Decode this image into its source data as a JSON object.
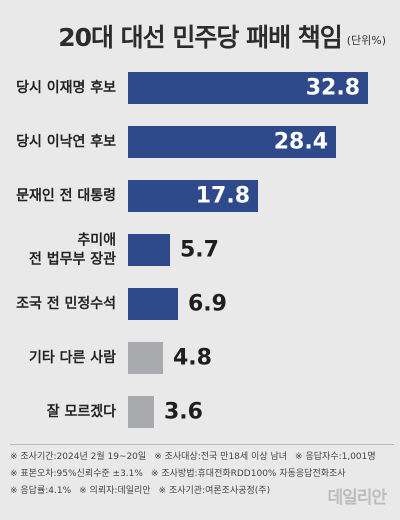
{
  "title": "20대 대선 민주당 패배 책임",
  "unit": "(단위%)",
  "colors": {
    "primary": "#2e4a8a",
    "secondary": "#a9aaad",
    "bg": "#e9e9e9"
  },
  "chart_data": {
    "type": "bar",
    "orientation": "horizontal",
    "categories": [
      [
        "당시 이재명 후보"
      ],
      [
        "당시 이낙연 후보"
      ],
      [
        "문재인 전 대통령"
      ],
      [
        "추미애",
        "전 법무부 장관"
      ],
      [
        "조국 전 민정수석"
      ],
      [
        "기타 다른 사람"
      ],
      [
        "잘 모르겠다"
      ]
    ],
    "values": [
      32.8,
      28.4,
      17.8,
      5.7,
      6.9,
      4.8,
      3.6
    ],
    "value_labels": [
      "32.8",
      "28.4",
      "17.8",
      "5.7",
      "6.9",
      "4.8",
      "3.6"
    ],
    "bar_colors": [
      "primary",
      "primary",
      "primary",
      "primary",
      "primary",
      "secondary",
      "secondary"
    ],
    "xlim": [
      0,
      35
    ]
  },
  "notes": [
    [
      "※ 조사기간:2024년 2월 19~20일",
      "※ 조사대상:전국 만18세 이상 남녀",
      "※ 응답자수:1,001명"
    ],
    [
      "※ 표본오차:95%신뢰수준 ±3.1%",
      "※ 조사방법:휴대전화RDD100% 자동응답전화조사"
    ],
    [
      "※ 응답률:4.1%",
      "※ 의뢰자:데일리안",
      "※ 조사기관:여론조사공정(주)"
    ]
  ],
  "logo": "데일리안"
}
